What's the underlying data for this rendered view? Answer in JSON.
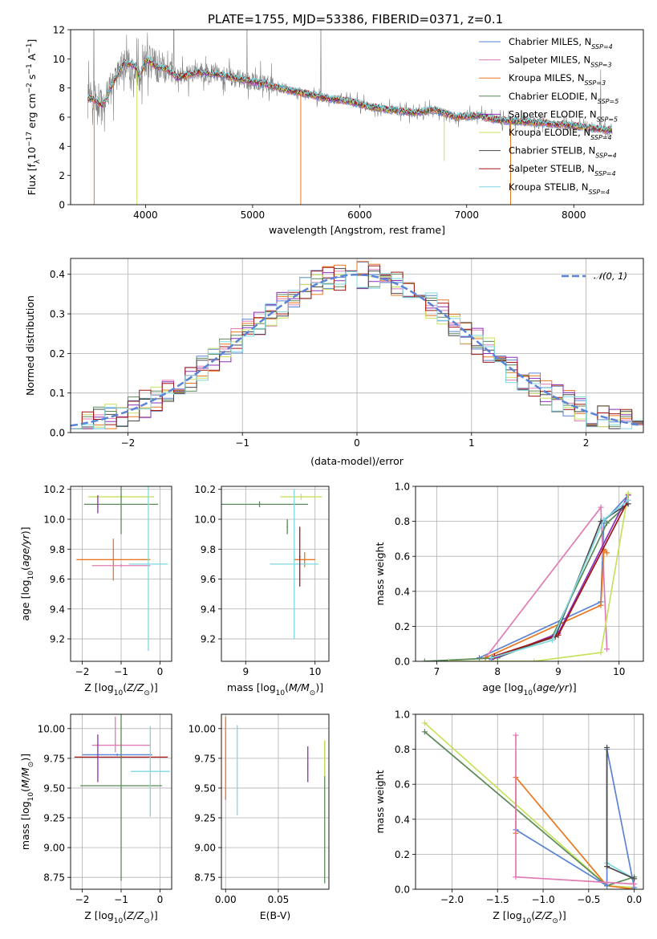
{
  "figure": {
    "title": "PLATE=1755, MJD=53386, FIBERID=0371, z=0.1"
  },
  "colors": {
    "chabrier_miles": "#5b84d6",
    "salpeter_miles": "#e07bb5",
    "kroupa_miles": "#e87722",
    "chabrier_elodie": "#5a8a58",
    "salpeter_elodie": "#8b2fb5",
    "kroupa_elodie": "#c6e25c",
    "chabrier_stelib": "#4a4a4a",
    "salpeter_stelib": "#a31515",
    "kroupa_stelib": "#7fd8e0",
    "data": "#808080",
    "grid": "#b0b0b0"
  },
  "chart_data": [
    {
      "id": "spectrum",
      "type": "line",
      "xlabel": "wavelength [Angstrom, rest frame]",
      "ylabel": "Flux [f_λ10^-17 erg cm^-2 s^-1 A^-1]",
      "xlim": [
        3300,
        8650
      ],
      "ylim": [
        0,
        12
      ],
      "xticks": [
        4000,
        5000,
        6000,
        7000,
        8000
      ],
      "yticks": [
        0,
        2,
        4,
        6,
        8,
        10,
        12
      ],
      "grid": false,
      "legend_position": "upper-right",
      "legend": [
        {
          "label": "Chabrier MILES, N_SSP=4",
          "color": "#5b84d6"
        },
        {
          "label": "Salpeter MILES, N_SSP=3",
          "color": "#e07bb5"
        },
        {
          "label": "Kroupa MILES, N_SSP=3",
          "color": "#e87722"
        },
        {
          "label": "Chabrier ELODIE, N_SSP=5",
          "color": "#5a8a58"
        },
        {
          "label": "Salpeter ELODIE, N_SSP=5",
          "color": "#8b2fb5"
        },
        {
          "label": "Kroupa ELODIE, N_SSP=4",
          "color": "#c6e25c"
        },
        {
          "label": "Chabrier STELIB, N_SSP=4",
          "color": "#4a4a4a"
        },
        {
          "label": "Salpeter STELIB, N_SSP=4",
          "color": "#a31515"
        },
        {
          "label": "Kroupa STELIB, N_SSP=4",
          "color": "#7fd8e0"
        }
      ],
      "model_continuum": {
        "x": [
          3500,
          3600,
          3700,
          3800,
          3900,
          3950,
          4000,
          4100,
          4200,
          4300,
          4500,
          4700,
          4900,
          5100,
          5300,
          5500,
          5700,
          5900,
          6100,
          6300,
          6500,
          6700,
          6900,
          7100,
          7300,
          7500,
          7700,
          7900,
          8100,
          8350
        ],
        "y": [
          7.3,
          6.8,
          8.4,
          9.8,
          9.5,
          8.7,
          10.0,
          9.5,
          9.3,
          8.7,
          9.1,
          8.9,
          8.6,
          8.3,
          7.9,
          7.6,
          7.3,
          7.1,
          6.7,
          6.5,
          6.3,
          6.5,
          6.0,
          6.1,
          5.8,
          5.7,
          5.6,
          5.5,
          5.3,
          5.1
        ]
      },
      "spikes": [
        {
          "x": 3520,
          "y": 0,
          "color": "#e87722"
        },
        {
          "x": 3920,
          "y": 0,
          "color": "#c6e25c"
        },
        {
          "x": 5450,
          "y": 0,
          "color": "#e87722"
        },
        {
          "x": 6790,
          "y": 3.0,
          "color": "#c6e25c"
        },
        {
          "x": 7410,
          "y": 0,
          "color": "#e87722"
        }
      ]
    },
    {
      "id": "residuals",
      "type": "line",
      "xlabel": "(data-model)/error",
      "ylabel": "Normed distribution",
      "xlim": [
        -2.5,
        2.5
      ],
      "ylim": [
        0,
        0.44
      ],
      "xticks": [
        -2,
        -1,
        0,
        1,
        2
      ],
      "yticks": [
        0.0,
        0.1,
        0.2,
        0.3,
        0.4
      ],
      "grid": true,
      "legend_position": "upper-right",
      "legend": [
        {
          "label": "𝒩(0, 1)",
          "color": "#5b84d6",
          "style": "dashed"
        }
      ],
      "bin_width": 0.1
    },
    {
      "id": "age_vs_Z",
      "type": "scatter",
      "xlabel": "Z [log10(Z/Z⊙)]",
      "ylabel": "age  [log10(age/yr)]",
      "xlim": [
        -2.3,
        0.3
      ],
      "ylim": [
        9.05,
        10.22
      ],
      "xticks": [
        -2,
        -1,
        0
      ],
      "yticks": [
        9.2,
        9.4,
        9.6,
        9.8,
        10.0,
        10.2
      ],
      "grid": true,
      "errorbars": [
        {
          "x": -1.0,
          "y": 10.15,
          "xerr": 0.85,
          "yerr": 0.02,
          "color": "#c6e25c"
        },
        {
          "x": -1.0,
          "y": 10.1,
          "xerr": 0.95,
          "yerr": 0.2,
          "color": "#5a8a58"
        },
        {
          "x": -1.2,
          "y": 9.73,
          "xerr": 0.95,
          "yerr": 0.14,
          "color": "#e87722"
        },
        {
          "x": -1.0,
          "y": 9.69,
          "xerr": 0.75,
          "yerr": 0.01,
          "color": "#e07bb5"
        },
        {
          "x": -0.3,
          "y": 9.7,
          "xerr": 0.5,
          "yerr": 0.58,
          "color": "#7fd8e0"
        },
        {
          "x": -1.6,
          "y": 10.1,
          "xerr": 0.01,
          "yerr": 0.06,
          "color": "#8b2fb5"
        }
      ]
    },
    {
      "id": "age_vs_mass",
      "type": "scatter",
      "xlabel": "mass [log10(M/M⊙)]",
      "ylabel": "",
      "xlim": [
        8.65,
        10.2
      ],
      "ylim": [
        9.05,
        10.22
      ],
      "xticks": [
        9,
        10
      ],
      "yticks": [
        9.2,
        9.4,
        9.6,
        9.8,
        10.0,
        10.2
      ],
      "grid": true,
      "errorbars": [
        {
          "x": 9.2,
          "y": 10.1,
          "xerr": 0.7,
          "yerr": 0.02,
          "color": "#5a8a58"
        },
        {
          "x": 9.8,
          "y": 10.15,
          "xerr": 0.3,
          "yerr": 0.02,
          "color": "#c6e25c"
        },
        {
          "x": 9.85,
          "y": 9.73,
          "xerr": 0.15,
          "yerr": 0.05,
          "color": "#e87722"
        },
        {
          "x": 9.7,
          "y": 9.7,
          "xerr": 0.35,
          "yerr": 0.5,
          "color": "#7fd8e0"
        },
        {
          "x": 9.78,
          "y": 9.75,
          "xerr": 0.01,
          "yerr": 0.2,
          "color": "#a31515"
        },
        {
          "x": 9.6,
          "y": 9.95,
          "xerr": 0.01,
          "yerr": 0.05,
          "color": "#5a8a58"
        }
      ]
    },
    {
      "id": "massweight_vs_age",
      "type": "line",
      "xlabel": "age  [log10(age/yr)]",
      "ylabel": "mass weight",
      "xlim": [
        6.65,
        10.4
      ],
      "ylim": [
        0,
        1
      ],
      "xticks": [
        7,
        8,
        9,
        10
      ],
      "yticks": [
        0.0,
        0.2,
        0.4,
        0.6,
        0.8,
        1.0
      ],
      "grid": true,
      "series": [
        {
          "color": "#5b84d6",
          "x": [
            7.7,
            9.7,
            9.75,
            10.15
          ],
          "y": [
            0.02,
            0.34,
            0.8,
            0.95
          ]
        },
        {
          "color": "#e07bb5",
          "x": [
            7.8,
            9.7,
            9.8
          ],
          "y": [
            0.02,
            0.88,
            0.07
          ]
        },
        {
          "color": "#e87722",
          "x": [
            7.8,
            9.7,
            9.75,
            9.8
          ],
          "y": [
            0.02,
            0.32,
            0.64,
            0.62
          ]
        },
        {
          "color": "#5a8a58",
          "x": [
            6.8,
            8.0,
            8.9,
            9.8,
            10.15
          ],
          "y": [
            0.0,
            0.02,
            0.14,
            0.79,
            0.9
          ]
        },
        {
          "color": "#8b2fb5",
          "x": [
            7.9,
            9.0,
            10.15
          ],
          "y": [
            0.01,
            0.16,
            0.95
          ]
        },
        {
          "color": "#c6e25c",
          "x": [
            7.2,
            8.6,
            9.7,
            10.15
          ],
          "y": [
            0.0,
            0.0,
            0.05,
            0.96
          ]
        },
        {
          "color": "#4a4a4a",
          "x": [
            7.9,
            8.95,
            9.7,
            10.15
          ],
          "y": [
            0.02,
            0.14,
            0.8,
            0.9
          ]
        },
        {
          "color": "#a31515",
          "x": [
            7.95,
            9.0,
            10.15
          ],
          "y": [
            0.03,
            0.15,
            0.92
          ]
        },
        {
          "color": "#7fd8e0",
          "x": [
            7.9,
            8.9,
            9.75,
            10.15
          ],
          "y": [
            0.02,
            0.12,
            0.81,
            0.92
          ]
        }
      ]
    },
    {
      "id": "mass_vs_Z",
      "type": "scatter",
      "xlabel": "Z [log10(Z/Z⊙)]",
      "ylabel": "mass [log10(M/M⊙)]",
      "xlim": [
        -2.3,
        0.3
      ],
      "ylim": [
        8.65,
        10.12
      ],
      "xticks": [
        -2,
        -1,
        0
      ],
      "yticks": [
        8.75,
        9.0,
        9.25,
        9.5,
        9.75,
        10.0
      ],
      "grid": true,
      "errorbars": [
        {
          "x": -1.1,
          "y": 9.78,
          "xerr": 0.9,
          "yerr": 0.01,
          "color": "#5b84d6"
        },
        {
          "x": -1.0,
          "y": 9.86,
          "xerr": 0.75,
          "yerr": 0.01,
          "color": "#e07bb5"
        },
        {
          "x": -1.0,
          "y": 9.76,
          "xerr": 1.2,
          "yerr": 0.01,
          "color": "#a31515"
        },
        {
          "x": -1.0,
          "y": 9.52,
          "xerr": 1.05,
          "yerr": 0.8,
          "color": "#5a8a58"
        },
        {
          "x": -0.25,
          "y": 9.64,
          "xerr": 0.5,
          "yerr": 0.38,
          "color": "#7fd8e0"
        },
        {
          "x": -1.6,
          "y": 9.75,
          "xerr": 0.01,
          "yerr": 0.2,
          "color": "#8b2fb5"
        },
        {
          "x": -1.15,
          "y": 9.95,
          "xerr": 0.01,
          "yerr": 0.15,
          "color": "#e07bb5"
        }
      ]
    },
    {
      "id": "mass_vs_EBV",
      "type": "scatter",
      "xlabel": "E(B-V)",
      "ylabel": "",
      "xlim": [
        -0.004,
        0.098
      ],
      "ylim": [
        8.65,
        10.12
      ],
      "xticks": [
        0.0,
        0.05
      ],
      "yticks": [
        8.75,
        9.0,
        9.25,
        9.5,
        9.75,
        10.0
      ],
      "grid": true,
      "errorbars": [
        {
          "x": 0.0,
          "y": 9.75,
          "xerr": 0.0005,
          "yerr": 0.35,
          "color": "#e87722"
        },
        {
          "x": 0.011,
          "y": 9.65,
          "xerr": 0.0005,
          "yerr": 0.38,
          "color": "#7fd8e0"
        },
        {
          "x": 0.078,
          "y": 9.7,
          "xerr": 0.0005,
          "yerr": 0.15,
          "color": "#8b2fb5"
        },
        {
          "x": 0.094,
          "y": 9.3,
          "xerr": 0.0005,
          "yerr": 0.6,
          "color": "#5a8a58"
        },
        {
          "x": 0.094,
          "y": 9.75,
          "xerr": 0.0005,
          "yerr": 0.15,
          "color": "#c6e25c"
        }
      ]
    },
    {
      "id": "massweight_vs_Z",
      "type": "line",
      "xlabel": "Z [log10(Z/Z⊙)]",
      "ylabel": "mass weight",
      "xlim": [
        -2.4,
        0.1
      ],
      "ylim": [
        0,
        1
      ],
      "xticks": [
        -2.0,
        -1.5,
        -1.0,
        -0.5,
        0.0
      ],
      "yticks": [
        0.0,
        0.2,
        0.4,
        0.6,
        0.8,
        1.0
      ],
      "grid": true,
      "series": [
        {
          "color": "#c6e25c",
          "x": [
            -2.3,
            -0.3,
            0.0
          ],
          "y": [
            0.95,
            0.02,
            0.01
          ]
        },
        {
          "color": "#5a8a58",
          "x": [
            -2.3,
            -0.3,
            0.0
          ],
          "y": [
            0.9,
            0.02,
            0.07
          ]
        },
        {
          "color": "#e87722",
          "x": [
            -1.3,
            -1.3,
            -0.3,
            0.0
          ],
          "y": [
            0.32,
            0.64,
            0.02,
            0.0
          ]
        },
        {
          "color": "#5b84d6",
          "x": [
            -1.3,
            -0.3,
            -0.3,
            0.0
          ],
          "y": [
            0.34,
            0.02,
            0.8,
            0.01
          ]
        },
        {
          "color": "#e07bb5",
          "x": [
            -1.3,
            -1.3,
            0.0
          ],
          "y": [
            0.88,
            0.07,
            0.03
          ]
        },
        {
          "color": "#7fd8e0",
          "x": [
            -0.3,
            -0.3,
            0.0
          ],
          "y": [
            0.81,
            0.15,
            0.06
          ]
        },
        {
          "color": "#4a4a4a",
          "x": [
            -0.3,
            -0.3,
            0.0
          ],
          "y": [
            0.81,
            0.13,
            0.06
          ]
        }
      ]
    }
  ]
}
